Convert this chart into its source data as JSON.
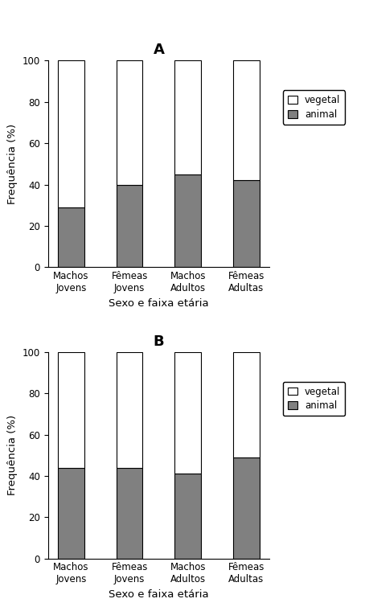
{
  "categories": [
    "Machos\nJovens",
    "Fêmeas\nJovens",
    "Machos\nAdultos",
    "Fêmeas\nAdultas"
  ],
  "panel_A": {
    "title": "A",
    "animal": [
      29,
      40,
      45,
      42
    ],
    "vegetal": [
      71,
      60,
      55,
      58
    ]
  },
  "panel_B": {
    "title": "B",
    "animal": [
      44,
      44,
      41,
      49
    ],
    "vegetal": [
      56,
      56,
      59,
      51
    ]
  },
  "animal_color": "#808080",
  "vegetal_color": "#ffffff",
  "bar_edgecolor": "#000000",
  "bar_width": 0.45,
  "ylim": [
    0,
    100
  ],
  "yticks": [
    0,
    20,
    40,
    60,
    80,
    100
  ],
  "ylabel": "Frequência (%)",
  "xlabel": "Sexo e faixa etária"
}
